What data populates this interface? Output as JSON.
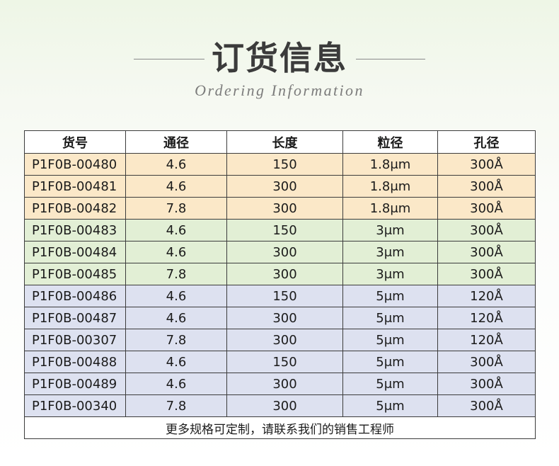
{
  "header": {
    "title": "订货信息",
    "subtitle": "Ordering Information"
  },
  "table": {
    "columns": [
      "货号",
      "通径",
      "长度",
      "粒径",
      "孔径"
    ],
    "rows": [
      {
        "group": "orange",
        "cells": [
          "P1F0B-00480",
          "4.6",
          "150",
          "1.8μm",
          "300Å"
        ]
      },
      {
        "group": "orange",
        "cells": [
          "P1F0B-00481",
          "4.6",
          "300",
          "1.8μm",
          "300Å"
        ]
      },
      {
        "group": "orange",
        "cells": [
          "P1F0B-00482",
          "7.8",
          "300",
          "1.8μm",
          "300Å"
        ]
      },
      {
        "group": "green",
        "cells": [
          "P1F0B-00483",
          "4.6",
          "150",
          "3μm",
          "300Å"
        ]
      },
      {
        "group": "green",
        "cells": [
          "P1F0B-00484",
          "4.6",
          "300",
          "3μm",
          "300Å"
        ]
      },
      {
        "group": "green",
        "cells": [
          "P1F0B-00485",
          "7.8",
          "300",
          "3μm",
          "300Å"
        ]
      },
      {
        "group": "blue",
        "cells": [
          "P1F0B-00486",
          "4.6",
          "150",
          "5μm",
          "120Å"
        ]
      },
      {
        "group": "blue",
        "cells": [
          "P1F0B-00487",
          "4.6",
          "300",
          "5μm",
          "120Å"
        ]
      },
      {
        "group": "blue",
        "cells": [
          "P1F0B-00307",
          "7.8",
          "300",
          "5μm",
          "120Å"
        ]
      },
      {
        "group": "blue",
        "cells": [
          "P1F0B-00488",
          "4.6",
          "150",
          "5μm",
          "300Å"
        ]
      },
      {
        "group": "blue",
        "cells": [
          "P1F0B-00489",
          "4.6",
          "300",
          "5μm",
          "300Å"
        ]
      },
      {
        "group": "blue",
        "cells": [
          "P1F0B-00340",
          "7.8",
          "300",
          "5μm",
          "300Å"
        ]
      }
    ],
    "footer_note": "更多规格可定制，请联系我们的销售工程师"
  },
  "colors": {
    "orange_group": "#fbe8c8",
    "green_group": "#e2efd5",
    "blue_group": "#dde1f0",
    "border": "#3c3c3c",
    "title": "#3b3b3b",
    "subtitle": "#7c7c7c"
  }
}
